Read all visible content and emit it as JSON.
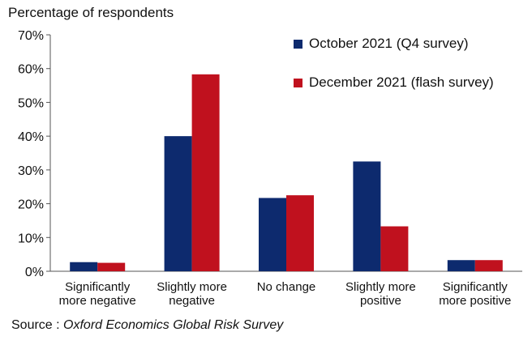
{
  "chart_data": {
    "type": "bar",
    "ylabel": "Percentage of respondents",
    "categories": [
      [
        "Significantly",
        "more negative"
      ],
      [
        "Slightly more",
        "negative"
      ],
      [
        "No change"
      ],
      [
        "Slightly more",
        "positive"
      ],
      [
        "Significantly",
        "more positive"
      ]
    ],
    "ylim": [
      0,
      70
    ],
    "yticks": [
      "0%",
      "10%",
      "20%",
      "30%",
      "40%",
      "50%",
      "60%",
      "70%"
    ],
    "series": [
      {
        "name": "October 2021 (Q4 survey)",
        "color": "#0d2a6e",
        "values": [
          2.7,
          40,
          21.7,
          32.5,
          3.3
        ]
      },
      {
        "name": "December 2021 (flash survey)",
        "color": "#c0111e",
        "values": [
          2.5,
          58.3,
          22.5,
          13.3,
          3.3
        ]
      }
    ],
    "grid": false,
    "legend_position": "top-right",
    "source_prefix": "Source : ",
    "source_text": "Oxford Economics Global Risk Survey"
  }
}
